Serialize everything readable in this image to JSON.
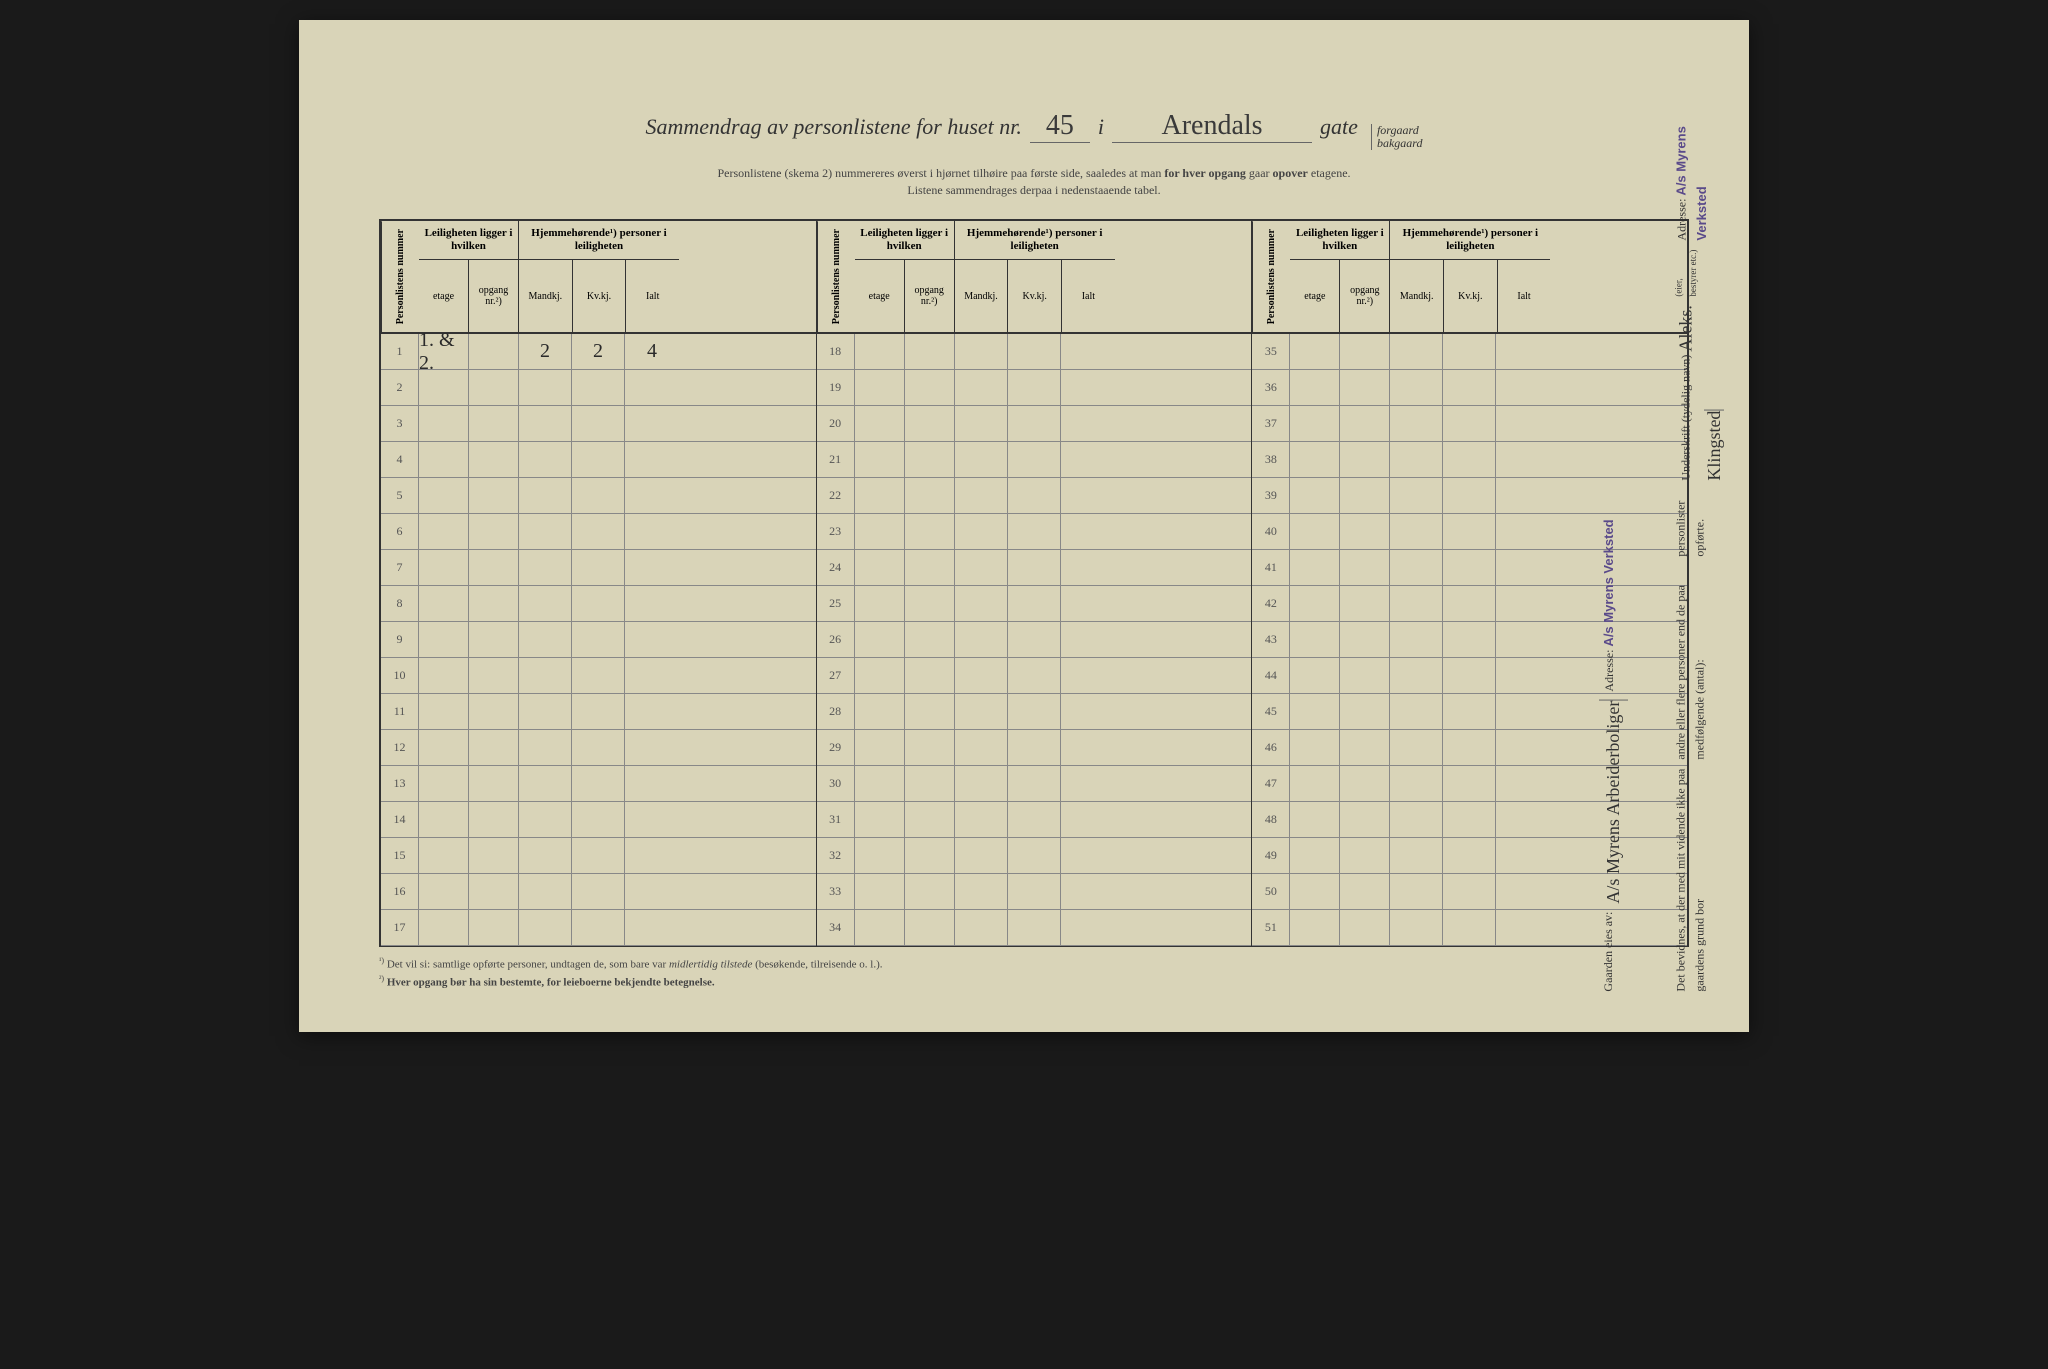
{
  "title": {
    "prefix": "Sammendrag av personlistene for huset nr.",
    "house_number": "45",
    "middle": "i",
    "street_name": "Arendals",
    "suffix": "gate",
    "option_top": "forgaard",
    "option_bottom": "bakgaard"
  },
  "subtitle": {
    "line1_a": "Personlistene (skema 2) nummereres øverst i hjørnet tilhøire paa første side, saaledes at man ",
    "line1_b": "for hver opgang",
    "line1_c": " gaar ",
    "line1_d": "opover",
    "line1_e": " etagene.",
    "line2": "Listene sammendrages derpaa i nedenstaaende tabel."
  },
  "headers": {
    "personlistens": "Personlistens nummer",
    "leiligheten": "Leiligheten ligger i hvilken",
    "hjemme": "Hjemmehørende¹) personer i leiligheten",
    "etage": "etage",
    "opgang": "opgang nr.²)",
    "mandkj": "Mandkj.",
    "kvkj": "Kv.kj.",
    "ialt": "Ialt"
  },
  "sections": [
    {
      "start": 1,
      "end": 17,
      "rows": [
        {
          "num": "1",
          "etage": "1. & 2.",
          "opgang": "",
          "mandkj": "2",
          "kvkj": "2",
          "ialt": "4"
        },
        {
          "num": "2"
        },
        {
          "num": "3"
        },
        {
          "num": "4"
        },
        {
          "num": "5"
        },
        {
          "num": "6"
        },
        {
          "num": "7"
        },
        {
          "num": "8"
        },
        {
          "num": "9"
        },
        {
          "num": "10"
        },
        {
          "num": "11"
        },
        {
          "num": "12"
        },
        {
          "num": "13"
        },
        {
          "num": "14"
        },
        {
          "num": "15"
        },
        {
          "num": "16"
        },
        {
          "num": "17"
        }
      ]
    },
    {
      "start": 18,
      "end": 34,
      "rows": [
        {
          "num": "18"
        },
        {
          "num": "19"
        },
        {
          "num": "20"
        },
        {
          "num": "21"
        },
        {
          "num": "22"
        },
        {
          "num": "23"
        },
        {
          "num": "24"
        },
        {
          "num": "25"
        },
        {
          "num": "26"
        },
        {
          "num": "27"
        },
        {
          "num": "28"
        },
        {
          "num": "29"
        },
        {
          "num": "30"
        },
        {
          "num": "31"
        },
        {
          "num": "32"
        },
        {
          "num": "33"
        },
        {
          "num": "34"
        }
      ]
    },
    {
      "start": 35,
      "end": 51,
      "rows": [
        {
          "num": "35"
        },
        {
          "num": "36"
        },
        {
          "num": "37"
        },
        {
          "num": "38"
        },
        {
          "num": "39"
        },
        {
          "num": "40"
        },
        {
          "num": "41"
        },
        {
          "num": "42"
        },
        {
          "num": "43"
        },
        {
          "num": "44"
        },
        {
          "num": "45"
        },
        {
          "num": "46"
        },
        {
          "num": "47"
        },
        {
          "num": "48"
        },
        {
          "num": "49"
        },
        {
          "num": "50"
        },
        {
          "num": "51"
        }
      ]
    }
  ],
  "footnotes": {
    "f1_sup": "¹)",
    "f1_text_a": "Det vil si: samtlige opførte personer, undtagen de, som bare var ",
    "f1_text_b": "midlertidig tilstede",
    "f1_text_c": " (besøkende, tilreisende o. l.).",
    "f2_sup": "²)",
    "f2_text": "Hver opgang bør ha sin bestemte, for leieboerne bekjendte betegnelse."
  },
  "sidebar": {
    "gaarden": "Gaarden eies av:",
    "owner": "A/s Myrens Arbeiderboliger",
    "adresse_label": "Adresse:",
    "adresse_stamp": "A/s Myrens Verksted",
    "attest_line1": "Det bevidnes, at der med mit vidende ikke paa gaardens grund bor",
    "attest_line2": "andre eller flere personer end de paa medfølgende (antal):",
    "attest_line3": "personlister opførte.",
    "underskrift_label": "Underskrift (tydelig navn)",
    "signature": "Aleks. Klingsted",
    "eier_note": "(eier, bestyrer etc.)",
    "adresse2_label": "Adresse:",
    "adresse2_stamp": "A/s Myrens Verksted"
  },
  "colors": {
    "paper": "#d9d4b8",
    "ink": "#333333",
    "stamp": "#5a4a8a"
  }
}
